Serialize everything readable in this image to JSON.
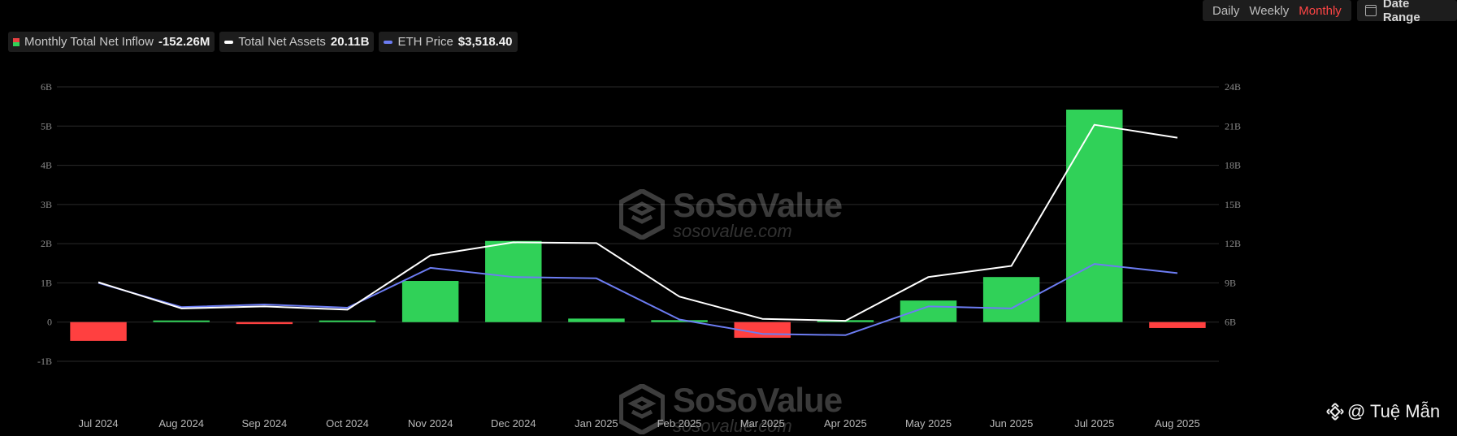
{
  "legend": {
    "inflow": {
      "label": "Monthly Total Net Inflow",
      "value": "-152.26M",
      "colors": [
        "#e84142",
        "#30d158"
      ]
    },
    "assets": {
      "label": "Total Net Assets",
      "value": "20.11B",
      "color": "#ffffff"
    },
    "eth": {
      "label": "ETH Price",
      "value": "$3,518.40",
      "color": "#6c7cf2"
    }
  },
  "range_toggle": {
    "options": [
      "Daily",
      "Weekly",
      "Monthly"
    ],
    "active": "Monthly"
  },
  "date_range": {
    "label": "Date Range",
    "icon": "calendar-icon"
  },
  "watermark": {
    "brand": "SoSoValue",
    "site": "sosovalue.com"
  },
  "credit": {
    "text": "@ Tuệ Mẫn",
    "icon": "binance-logo-icon"
  },
  "colors": {
    "positive": "#30d158",
    "negative": "#ff4040",
    "assets_line": "#ffffff",
    "eth_line": "#6c7cf2",
    "grid": "#2a2a2a"
  },
  "chart_data": {
    "type": "bar",
    "categories": [
      "Jul 2024",
      "Aug 2024",
      "Sep 2024",
      "Oct 2024",
      "Nov 2024",
      "Dec 2024",
      "Jan 2025",
      "Feb 2025",
      "Mar 2025",
      "Apr 2025",
      "May 2025",
      "Jun 2025",
      "Jul 2025",
      "Aug 2025"
    ],
    "left_axis": {
      "ticks": [
        "-1B",
        "0",
        "1B",
        "2B",
        "3B",
        "4B",
        "5B",
        "6B"
      ],
      "range": [
        -1,
        6
      ],
      "unit": "B"
    },
    "right_axis": {
      "ticks": [
        "6B",
        "9B",
        "12B",
        "15B",
        "18B",
        "21B",
        "24B"
      ],
      "range": [
        6,
        24
      ],
      "unit": "B"
    },
    "grid": true,
    "legend_position": "top-left",
    "series": [
      {
        "name": "Monthly Total Net Inflow",
        "type": "bar",
        "axis": "left",
        "unit": "B",
        "values": [
          -0.48,
          0.01,
          -0.05,
          0.02,
          1.05,
          2.07,
          0.09,
          0.05,
          -0.4,
          0.05,
          0.55,
          1.15,
          5.42,
          -0.15
        ]
      },
      {
        "name": "Total Net Assets",
        "type": "line",
        "axis": "right",
        "unit": "B",
        "values": [
          9.05,
          7.05,
          7.2,
          6.95,
          11.1,
          12.1,
          12.05,
          7.95,
          6.25,
          6.1,
          9.45,
          10.3,
          21.1,
          20.11
        ]
      },
      {
        "name": "ETH Price",
        "type": "line",
        "axis": "right",
        "note_scale": "plotted on shared scale",
        "values": [
          9.0,
          7.15,
          7.35,
          7.1,
          10.15,
          9.45,
          9.35,
          6.2,
          5.1,
          5.0,
          7.2,
          7.05,
          10.45,
          9.75
        ]
      }
    ]
  }
}
